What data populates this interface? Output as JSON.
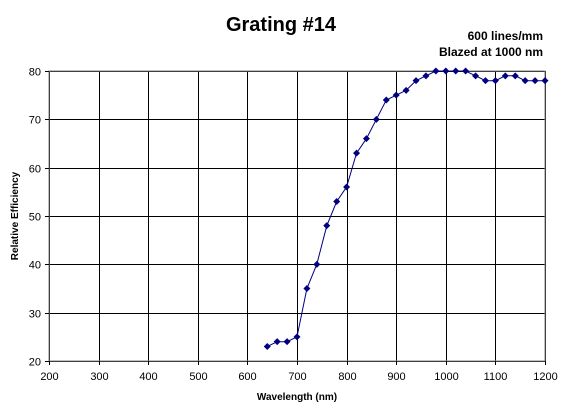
{
  "chart_data": {
    "type": "line",
    "title": "Grating #14",
    "annotations": [
      "600 lines/mm",
      "Blazed at 1000 nm"
    ],
    "xlabel": "Wavelength (nm)",
    "ylabel": "Relative Efficiency",
    "xlim": [
      200,
      1200
    ],
    "ylim": [
      20,
      80
    ],
    "xticks": [
      200,
      300,
      400,
      500,
      600,
      700,
      800,
      900,
      1000,
      1100,
      1200
    ],
    "yticks": [
      20,
      30,
      40,
      50,
      60,
      70,
      80
    ],
    "grid": true,
    "legend": "none",
    "series": [
      {
        "color": "#000080",
        "marker": "diamond",
        "x": [
          640,
          660,
          680,
          700,
          720,
          740,
          760,
          780,
          800,
          820,
          840,
          860,
          880,
          900,
          920,
          940,
          960,
          980,
          1000,
          1020,
          1040,
          1060,
          1080,
          1100,
          1120,
          1140,
          1160,
          1180,
          1200
        ],
        "y": [
          23,
          24,
          24,
          25,
          35,
          40,
          48,
          53,
          56,
          63,
          66,
          70,
          74,
          75,
          76,
          78,
          79,
          80,
          80,
          80,
          80,
          79,
          78,
          78,
          79,
          79,
          78,
          78,
          78
        ]
      }
    ]
  }
}
